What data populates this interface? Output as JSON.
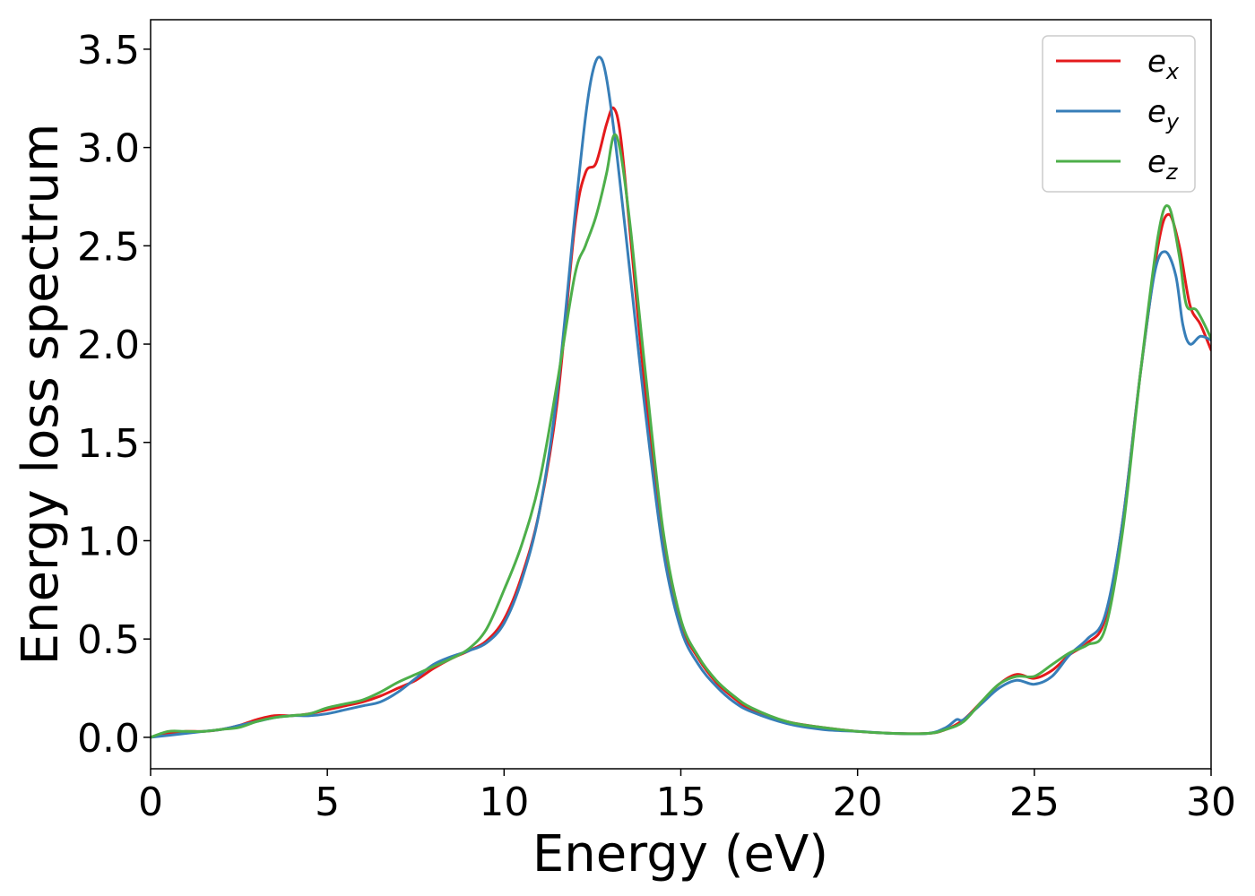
{
  "chart_data": {
    "type": "line",
    "xlabel": "Energy (eV)",
    "ylabel": "Energy loss spectrum",
    "xlim": [
      0,
      30
    ],
    "ylim": [
      -0.16,
      3.65
    ],
    "xticks": [
      0,
      5,
      10,
      15,
      20,
      25,
      30
    ],
    "yticks": [
      0.0,
      0.5,
      1.0,
      1.5,
      2.0,
      2.5,
      3.0,
      3.5
    ],
    "xtick_labels": [
      "0",
      "5",
      "10",
      "15",
      "20",
      "25",
      "30"
    ],
    "ytick_labels": [
      "0.0",
      "0.5",
      "1.0",
      "1.5",
      "2.0",
      "2.5",
      "3.0",
      "3.5"
    ],
    "grid": false,
    "legend": "top-right",
    "series": [
      {
        "name": "e",
        "sub": "x",
        "color": "#e41a1c",
        "points": [
          [
            0,
            0.0
          ],
          [
            0.5,
            0.02
          ],
          [
            1,
            0.03
          ],
          [
            1.5,
            0.03
          ],
          [
            2,
            0.04
          ],
          [
            2.5,
            0.06
          ],
          [
            3,
            0.09
          ],
          [
            3.5,
            0.11
          ],
          [
            4,
            0.11
          ],
          [
            4.5,
            0.12
          ],
          [
            5,
            0.14
          ],
          [
            5.5,
            0.16
          ],
          [
            6,
            0.18
          ],
          [
            6.5,
            0.21
          ],
          [
            7,
            0.25
          ],
          [
            7.5,
            0.29
          ],
          [
            8,
            0.35
          ],
          [
            8.5,
            0.4
          ],
          [
            9,
            0.44
          ],
          [
            9.5,
            0.49
          ],
          [
            10,
            0.6
          ],
          [
            10.5,
            0.82
          ],
          [
            11,
            1.15
          ],
          [
            11.5,
            1.7
          ],
          [
            12,
            2.6
          ],
          [
            12.3,
            2.87
          ],
          [
            12.6,
            2.92
          ],
          [
            12.9,
            3.12
          ],
          [
            13.1,
            3.2
          ],
          [
            13.3,
            3.05
          ],
          [
            13.6,
            2.5
          ],
          [
            14,
            1.75
          ],
          [
            14.5,
            1.0
          ],
          [
            15,
            0.58
          ],
          [
            15.5,
            0.4
          ],
          [
            16,
            0.28
          ],
          [
            16.5,
            0.2
          ],
          [
            17,
            0.14
          ],
          [
            18,
            0.08
          ],
          [
            19,
            0.05
          ],
          [
            20,
            0.03
          ],
          [
            21,
            0.02
          ],
          [
            22,
            0.02
          ],
          [
            22.5,
            0.04
          ],
          [
            23,
            0.09
          ],
          [
            23.5,
            0.18
          ],
          [
            24,
            0.27
          ],
          [
            24.5,
            0.32
          ],
          [
            25,
            0.3
          ],
          [
            25.5,
            0.34
          ],
          [
            26,
            0.42
          ],
          [
            26.5,
            0.48
          ],
          [
            27,
            0.6
          ],
          [
            27.5,
            1.1
          ],
          [
            28,
            1.85
          ],
          [
            28.5,
            2.5
          ],
          [
            28.8,
            2.66
          ],
          [
            29.1,
            2.5
          ],
          [
            29.4,
            2.2
          ],
          [
            29.7,
            2.1
          ],
          [
            30,
            1.97
          ]
        ]
      },
      {
        "name": "e",
        "sub": "y",
        "color": "#377eb8",
        "points": [
          [
            0,
            0.0
          ],
          [
            0.5,
            0.01
          ],
          [
            1,
            0.02
          ],
          [
            1.5,
            0.03
          ],
          [
            2,
            0.04
          ],
          [
            2.5,
            0.06
          ],
          [
            3,
            0.08
          ],
          [
            3.5,
            0.1
          ],
          [
            4,
            0.11
          ],
          [
            4.5,
            0.11
          ],
          [
            5,
            0.12
          ],
          [
            5.5,
            0.14
          ],
          [
            6,
            0.16
          ],
          [
            6.5,
            0.18
          ],
          [
            7,
            0.23
          ],
          [
            7.5,
            0.3
          ],
          [
            8,
            0.37
          ],
          [
            8.5,
            0.41
          ],
          [
            9,
            0.44
          ],
          [
            9.5,
            0.48
          ],
          [
            10,
            0.58
          ],
          [
            10.5,
            0.8
          ],
          [
            11,
            1.15
          ],
          [
            11.5,
            1.75
          ],
          [
            12,
            2.65
          ],
          [
            12.3,
            3.15
          ],
          [
            12.5,
            3.38
          ],
          [
            12.7,
            3.46
          ],
          [
            12.9,
            3.35
          ],
          [
            13.2,
            2.95
          ],
          [
            13.6,
            2.3
          ],
          [
            14,
            1.65
          ],
          [
            14.5,
            0.95
          ],
          [
            15,
            0.55
          ],
          [
            15.5,
            0.37
          ],
          [
            16,
            0.26
          ],
          [
            16.5,
            0.18
          ],
          [
            17,
            0.13
          ],
          [
            18,
            0.07
          ],
          [
            19,
            0.04
          ],
          [
            20,
            0.03
          ],
          [
            21,
            0.02
          ],
          [
            22,
            0.02
          ],
          [
            22.5,
            0.05
          ],
          [
            22.8,
            0.09
          ],
          [
            23,
            0.09
          ],
          [
            23.5,
            0.17
          ],
          [
            24,
            0.25
          ],
          [
            24.5,
            0.29
          ],
          [
            25,
            0.27
          ],
          [
            25.5,
            0.31
          ],
          [
            26,
            0.42
          ],
          [
            26.5,
            0.5
          ],
          [
            27,
            0.62
          ],
          [
            27.5,
            1.1
          ],
          [
            28,
            1.85
          ],
          [
            28.4,
            2.36
          ],
          [
            28.7,
            2.47
          ],
          [
            29,
            2.35
          ],
          [
            29.2,
            2.1
          ],
          [
            29.4,
            2.0
          ],
          [
            29.7,
            2.04
          ],
          [
            30,
            2.02
          ]
        ]
      },
      {
        "name": "e",
        "sub": "z",
        "color": "#4daf4a",
        "points": [
          [
            0,
            0.0
          ],
          [
            0.5,
            0.03
          ],
          [
            1,
            0.03
          ],
          [
            1.5,
            0.03
          ],
          [
            2,
            0.04
          ],
          [
            2.5,
            0.05
          ],
          [
            3,
            0.08
          ],
          [
            3.5,
            0.1
          ],
          [
            4,
            0.11
          ],
          [
            4.5,
            0.12
          ],
          [
            5,
            0.15
          ],
          [
            5.5,
            0.17
          ],
          [
            6,
            0.19
          ],
          [
            6.5,
            0.23
          ],
          [
            7,
            0.28
          ],
          [
            7.5,
            0.32
          ],
          [
            8,
            0.36
          ],
          [
            8.5,
            0.4
          ],
          [
            9,
            0.45
          ],
          [
            9.5,
            0.55
          ],
          [
            10,
            0.75
          ],
          [
            10.5,
            0.98
          ],
          [
            11,
            1.3
          ],
          [
            11.5,
            1.8
          ],
          [
            12,
            2.35
          ],
          [
            12.3,
            2.5
          ],
          [
            12.6,
            2.65
          ],
          [
            12.9,
            2.87
          ],
          [
            13.1,
            3.06
          ],
          [
            13.3,
            2.97
          ],
          [
            13.6,
            2.55
          ],
          [
            14,
            1.85
          ],
          [
            14.5,
            1.05
          ],
          [
            15,
            0.6
          ],
          [
            15.5,
            0.41
          ],
          [
            16,
            0.29
          ],
          [
            16.5,
            0.21
          ],
          [
            17,
            0.15
          ],
          [
            18,
            0.08
          ],
          [
            19,
            0.05
          ],
          [
            20,
            0.03
          ],
          [
            21,
            0.02
          ],
          [
            22,
            0.02
          ],
          [
            22.5,
            0.04
          ],
          [
            23,
            0.08
          ],
          [
            23.5,
            0.18
          ],
          [
            24,
            0.27
          ],
          [
            24.5,
            0.31
          ],
          [
            25,
            0.31
          ],
          [
            25.5,
            0.37
          ],
          [
            26,
            0.43
          ],
          [
            26.5,
            0.47
          ],
          [
            27,
            0.55
          ],
          [
            27.5,
            1.05
          ],
          [
            28,
            1.85
          ],
          [
            28.5,
            2.55
          ],
          [
            28.8,
            2.7
          ],
          [
            29.1,
            2.45
          ],
          [
            29.3,
            2.2
          ],
          [
            29.6,
            2.17
          ],
          [
            30,
            2.03
          ]
        ]
      }
    ]
  }
}
